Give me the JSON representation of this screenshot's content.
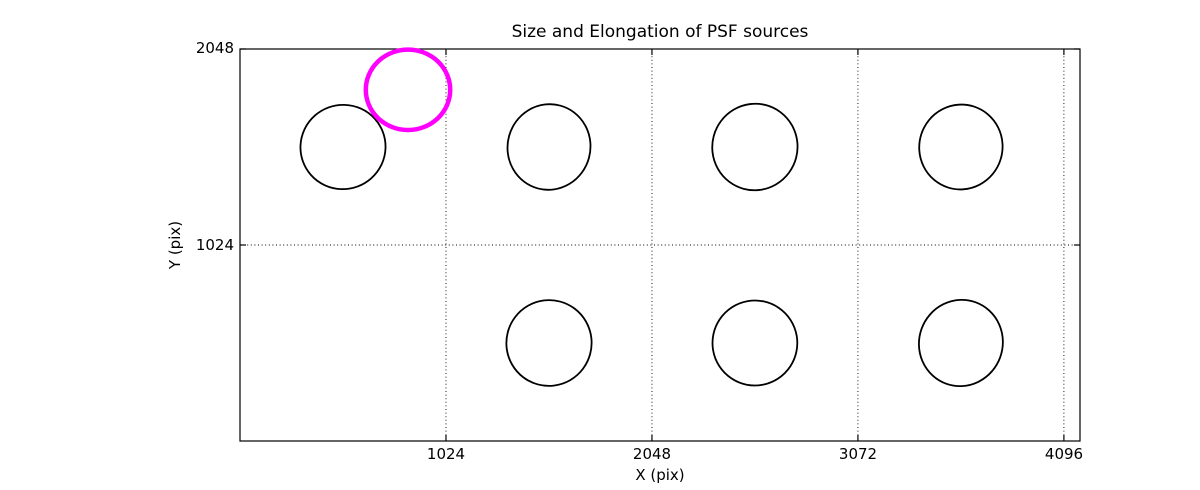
{
  "figure": {
    "background": "#ffffff"
  },
  "chart_data": {
    "type": "scatter",
    "title": "Size and Elongation of PSF sources",
    "xlabel": "X (pix)",
    "ylabel": "Y (pix)",
    "xlim": [
      0,
      4176
    ],
    "ylim": [
      0,
      2048
    ],
    "xticks": [
      1024,
      2048,
      3072,
      4096
    ],
    "yticks": [
      1024,
      2048
    ],
    "xtick_labels": [
      "1024",
      "2048",
      "3072",
      "4096"
    ],
    "ytick_labels": [
      "1024",
      "2048"
    ],
    "grid": {
      "on": true,
      "style": "dotted",
      "color": "#000000"
    },
    "axis_color": "#000000",
    "legend": "none",
    "marker_style": "ellipse-outline",
    "colors": {
      "normal": "#000000",
      "flagged": "#ff00ff"
    },
    "sources": [
      {
        "x": 512,
        "y": 1536,
        "a": 212,
        "b": 220,
        "angle": -20,
        "color": "#000000",
        "linewidth": 1.8,
        "flagged": false
      },
      {
        "x": 1536,
        "y": 1536,
        "a": 206,
        "b": 224,
        "angle": 15,
        "color": "#000000",
        "linewidth": 1.8,
        "flagged": false
      },
      {
        "x": 2560,
        "y": 1536,
        "a": 212,
        "b": 226,
        "angle": 15,
        "color": "#000000",
        "linewidth": 1.8,
        "flagged": false
      },
      {
        "x": 3584,
        "y": 1536,
        "a": 207,
        "b": 222,
        "angle": 18,
        "color": "#000000",
        "linewidth": 1.8,
        "flagged": false
      },
      {
        "x": 1536,
        "y": 512,
        "a": 212,
        "b": 224,
        "angle": 15,
        "color": "#000000",
        "linewidth": 1.8,
        "flagged": false
      },
      {
        "x": 2560,
        "y": 512,
        "a": 211,
        "b": 222,
        "angle": 12,
        "color": "#000000",
        "linewidth": 1.8,
        "flagged": false
      },
      {
        "x": 3584,
        "y": 512,
        "a": 208,
        "b": 226,
        "angle": 20,
        "color": "#000000",
        "linewidth": 1.8,
        "flagged": false
      },
      {
        "x": 835,
        "y": 1835,
        "a": 210,
        "b": 210,
        "angle": 0,
        "color": "#ff00ff",
        "linewidth": 4.5,
        "flagged": true
      }
    ]
  }
}
